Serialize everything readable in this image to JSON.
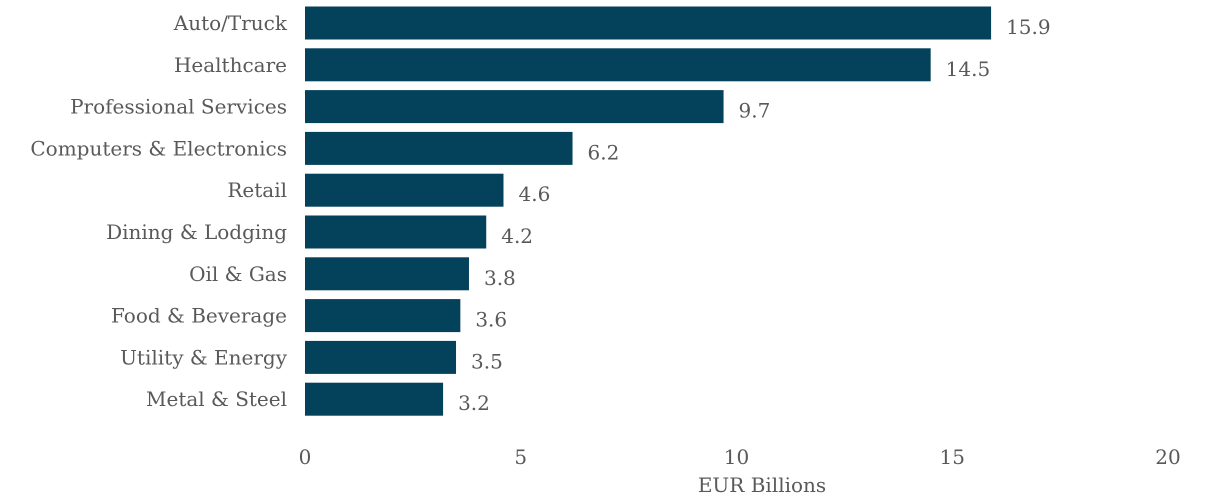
{
  "chart_data": {
    "type": "bar",
    "orientation": "horizontal",
    "categories": [
      "Auto/Truck",
      "Healthcare",
      "Professional Services",
      "Computers & Electronics",
      "Retail",
      "Dining & Lodging",
      "Oil & Gas",
      "Food & Beverage",
      "Utility & Energy",
      "Metal & Steel"
    ],
    "values": [
      15.9,
      14.5,
      9.7,
      6.2,
      4.6,
      4.2,
      3.8,
      3.6,
      3.5,
      3.2
    ],
    "value_labels": [
      "15.9",
      "14.5",
      "9.7",
      "6.2",
      "4.6",
      "4.2",
      "3.8",
      "3.6",
      "3.5",
      "3.2"
    ],
    "xlabel": "EUR Billions",
    "ylabel": "",
    "title": "",
    "xlim": [
      0,
      20
    ],
    "xticks": [
      0,
      5,
      10,
      15,
      20
    ],
    "grid": false,
    "bar_color": "#03425a",
    "text_color": "#595959"
  }
}
